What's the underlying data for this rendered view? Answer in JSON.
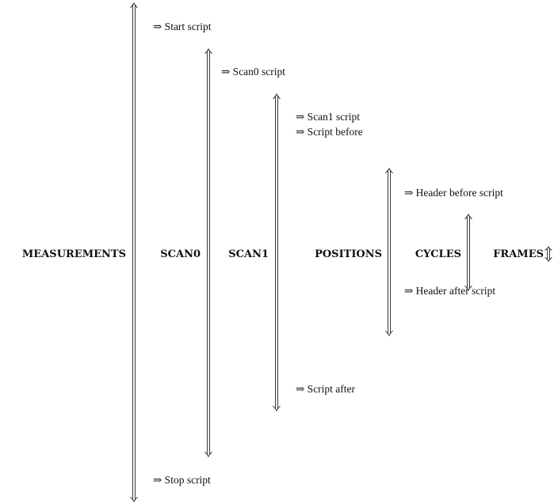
{
  "levels": [
    {
      "label": "MEASUREMENTS",
      "before": [
        "⇒ Start script"
      ],
      "after": [
        "⇒ Stop script"
      ]
    },
    {
      "label": "SCAN0",
      "before": [
        "⇒ Scan0 script"
      ],
      "after": []
    },
    {
      "label": "SCAN1",
      "before": [
        "⇒ Scan1 script",
        "⇒ Script before"
      ],
      "after": [
        "⇒ Script after"
      ]
    },
    {
      "label": "POSITIONS",
      "before": [
        "⇒ Header before script"
      ],
      "after": [
        "⇒ Header after script"
      ]
    },
    {
      "label": "CYCLES",
      "before": [],
      "after": []
    },
    {
      "label": "FRAMES",
      "before": [],
      "after": []
    }
  ],
  "arrow_icon": "double-up-down-arrow"
}
